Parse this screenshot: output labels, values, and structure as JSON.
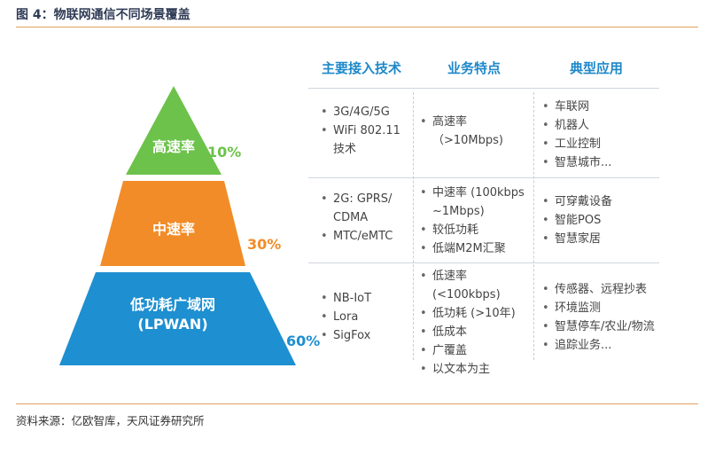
{
  "title": "图 4：物联网通信不同场景覆盖",
  "source": "资料来源：亿欧智库，天风证券研究所",
  "headers": {
    "tech": "主要接入技术",
    "feature": "业务特点",
    "app": "典型应用"
  },
  "colors": {
    "high": "#6cc24a",
    "mid": "#f28c28",
    "low": "#1e8fd0",
    "header": "#1e88c9"
  },
  "tiers": [
    {
      "name": "高速率",
      "name2": "",
      "pct": "10%",
      "tech": [
        "3G/4G/5G",
        "WiFi 802.11 技术"
      ],
      "features": [
        "高速率（>10Mbps)"
      ],
      "apps": [
        "车联网",
        "机器人",
        "工业控制",
        "智慧城市..."
      ]
    },
    {
      "name": "中速率",
      "name2": "",
      "pct": "30%",
      "tech": [
        "2G: GPRS/ CDMA",
        "MTC/eMTC"
      ],
      "features": [
        "中速率 (100kbps ~1Mbps)",
        "较低功耗",
        "低端M2M汇聚"
      ],
      "apps": [
        "可穿戴设备",
        "智能POS",
        "智慧家居"
      ]
    },
    {
      "name": "低功耗广域网",
      "name2": "(LPWAN)",
      "pct": "60%",
      "tech": [
        "NB-IoT",
        "Lora",
        "SigFox"
      ],
      "features": [
        "低速率 (<100kbps)",
        "低功耗 (>10年)",
        "低成本",
        "广覆盖",
        "以文本为主"
      ],
      "apps": [
        "传感器、远程抄表",
        "环境监测",
        "智慧停车/农业/物流",
        "追踪业务..."
      ]
    }
  ]
}
